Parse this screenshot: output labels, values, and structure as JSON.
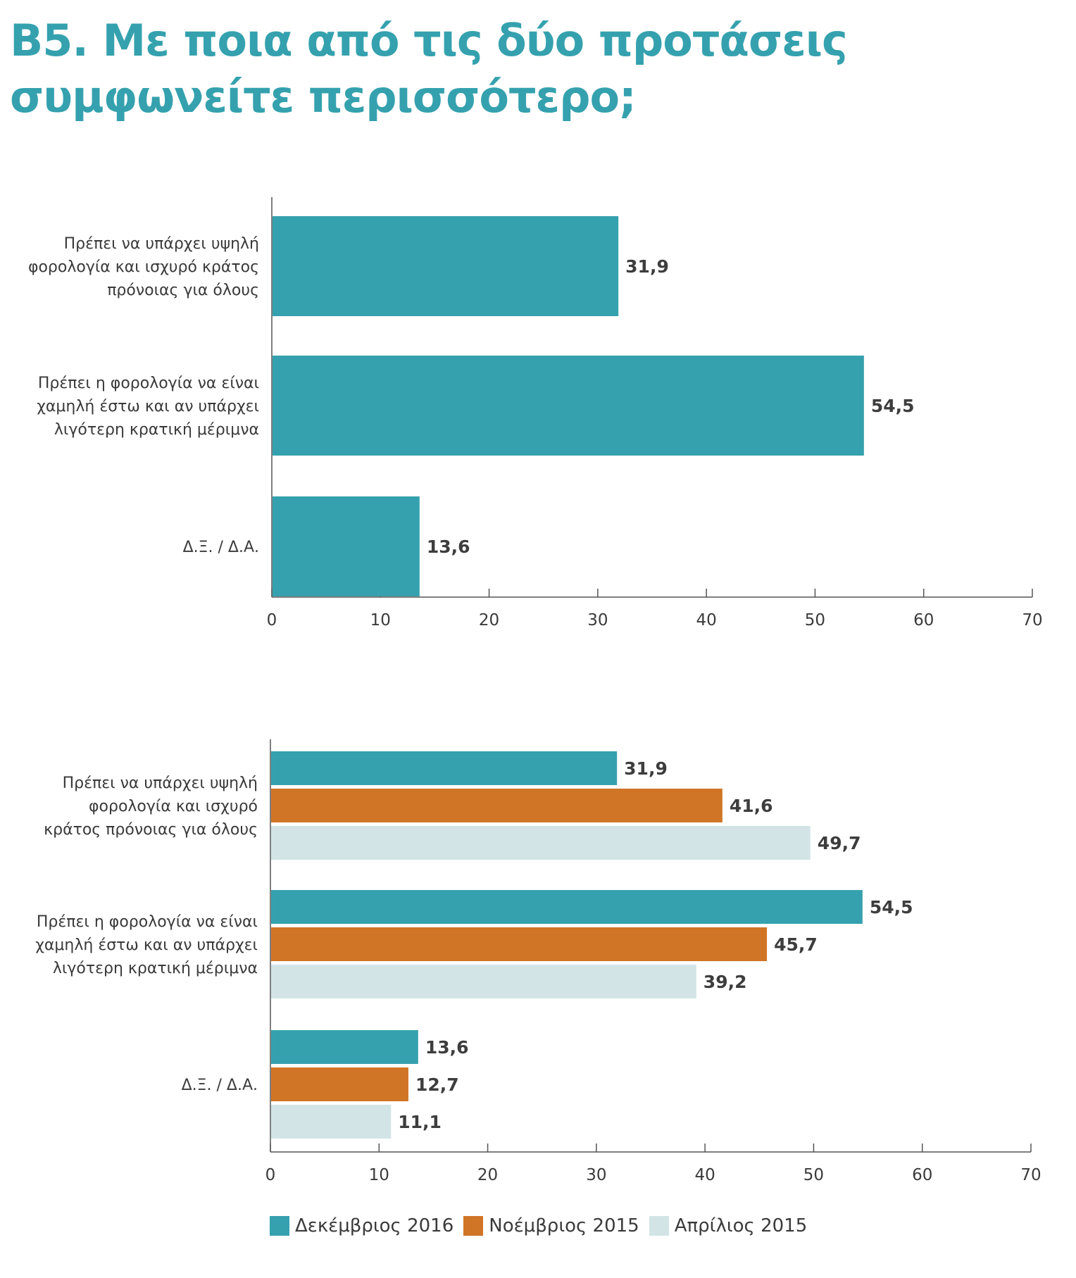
{
  "title": "B5. Με ποια από τις δύο προτάσεις συμφωνείτε περισσότερο;",
  "chart_data": [
    {
      "type": "bar",
      "orientation": "horizontal",
      "categories": [
        "Πρέπει να υπάρχει υψηλή φορολογία και ισχυρό κράτος πρόνοιας για όλους",
        "Πρέπει η φορολογία να είναι χαμηλή έστω και αν υπάρχει λιγότερη κρατική μέριμνα",
        "Δ.Ξ. / Δ.Α."
      ],
      "category_lines": [
        [
          "Πρέπει να υπάρχει υψηλή",
          "φορολογία και ισχυρό κράτος",
          "πρόνοιας για όλους"
        ],
        [
          "Πρέπει η φορολογία να είναι",
          "χαμηλή έστω και αν υπάρχει",
          "λιγότερη κρατική μέριμνα"
        ],
        [
          "Δ.Ξ. / Δ.Α."
        ]
      ],
      "series": [
        {
          "color": "#35a1ae",
          "values": [
            31.9,
            54.5,
            13.6
          ],
          "labels": [
            "31,9",
            "54,5",
            "13,6"
          ]
        }
      ],
      "xlim": [
        0,
        70
      ],
      "ticks": [
        0,
        10,
        20,
        30,
        40,
        50,
        60,
        70
      ],
      "grid": false
    },
    {
      "type": "bar",
      "orientation": "horizontal",
      "categories": [
        "Πρέπει να υπάρχει υψηλή φορολογία και ισχυρό κράτος πρόνοιας για όλους",
        "Πρέπει η φορολογία να είναι χαμηλή έστω και αν υπάρχει λιγότερη κρατική μέριμνα",
        "Δ.Ξ. / Δ.Α."
      ],
      "category_lines": [
        [
          "Πρέπει να υπάρχει υψηλή",
          "φορολογία και ισχυρό",
          "κράτος πρόνοιας για όλους"
        ],
        [
          "Πρέπει η φορολογία να είναι",
          "χαμηλή έστω και αν υπάρχει",
          "λιγότερη κρατική μέριμνα"
        ],
        [
          "Δ.Ξ. / Δ.Α."
        ]
      ],
      "series": [
        {
          "name": "Δεκέμβριος 2016",
          "color": "#35a1ae",
          "values": [
            31.9,
            54.5,
            13.6
          ],
          "labels": [
            "31,9",
            "54,5",
            "13,6"
          ]
        },
        {
          "name": "Νοέμβριος 2015",
          "color": "#d07526",
          "values": [
            41.6,
            45.7,
            12.7
          ],
          "labels": [
            "41,6",
            "45,7",
            "12,7"
          ]
        },
        {
          "name": "Απρίλιος 2015",
          "color": "#d2e4e6",
          "values": [
            49.7,
            39.2,
            11.1
          ],
          "labels": [
            "49,7",
            "39,2",
            "11,1"
          ]
        }
      ],
      "xlim": [
        0,
        70
      ],
      "ticks": [
        0,
        10,
        20,
        30,
        40,
        50,
        60,
        70
      ],
      "grid": false,
      "legend": "bottom"
    }
  ]
}
